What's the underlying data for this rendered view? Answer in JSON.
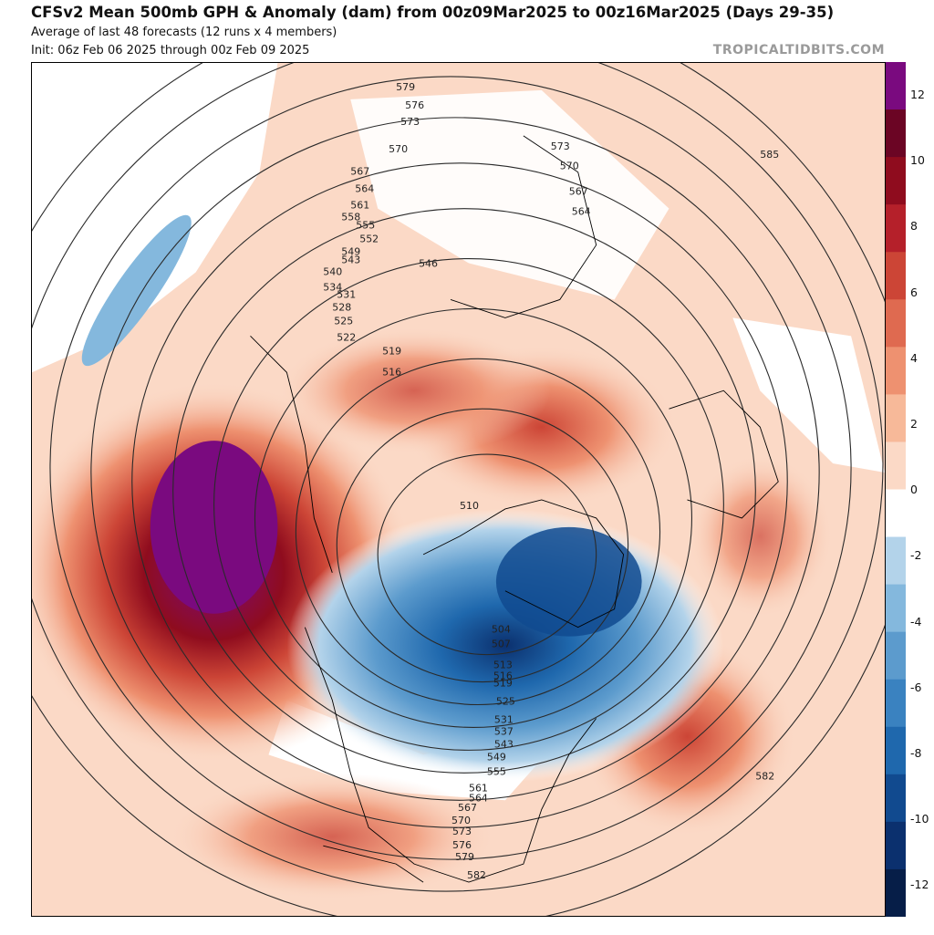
{
  "header": {
    "title": "CFSv2 Mean 500mb GPH & Anomaly (dam) from 00z09Mar2025 to 00z16Mar2025 (Days 29-35)",
    "subtitle": "Average of last 48 forecasts (12 runs x 4 members)",
    "init": "Init: 06z Feb 06 2025 through 00z Feb 09 2025",
    "credit": "TROPICALTIDBITS.COM"
  },
  "colorbar": {
    "labels": [
      "12",
      "10",
      "8",
      "6",
      "4",
      "2",
      "0",
      "-2",
      "-4",
      "-6",
      "-8",
      "-10",
      "-12"
    ],
    "colors": [
      "#061e48",
      "#0b306e",
      "#114a8f",
      "#1f68ad",
      "#3a82c0",
      "#5c9bcd",
      "#84b8dd",
      "#b3d3ea",
      "#ffffff",
      "#fbd9c6",
      "#f7b999",
      "#ee9170",
      "#df6a50",
      "#cc4536",
      "#b5202a",
      "#8f0c1e",
      "#6b0524",
      "#7a0a7f"
    ]
  },
  "contours": {
    "labels": [
      "579",
      "576",
      "573",
      "570",
      "567",
      "564",
      "561",
      "558",
      "555",
      "552",
      "549",
      "546",
      "543",
      "540",
      "534",
      "531",
      "528",
      "525",
      "522",
      "519",
      "516",
      "510",
      "573",
      "570",
      "567",
      "564",
      "585",
      "504",
      "507",
      "513",
      "516",
      "519",
      "525",
      "531",
      "537",
      "543",
      "549",
      "555",
      "561",
      "564",
      "567",
      "570",
      "573",
      "576",
      "579",
      "582",
      "582"
    ]
  }
}
